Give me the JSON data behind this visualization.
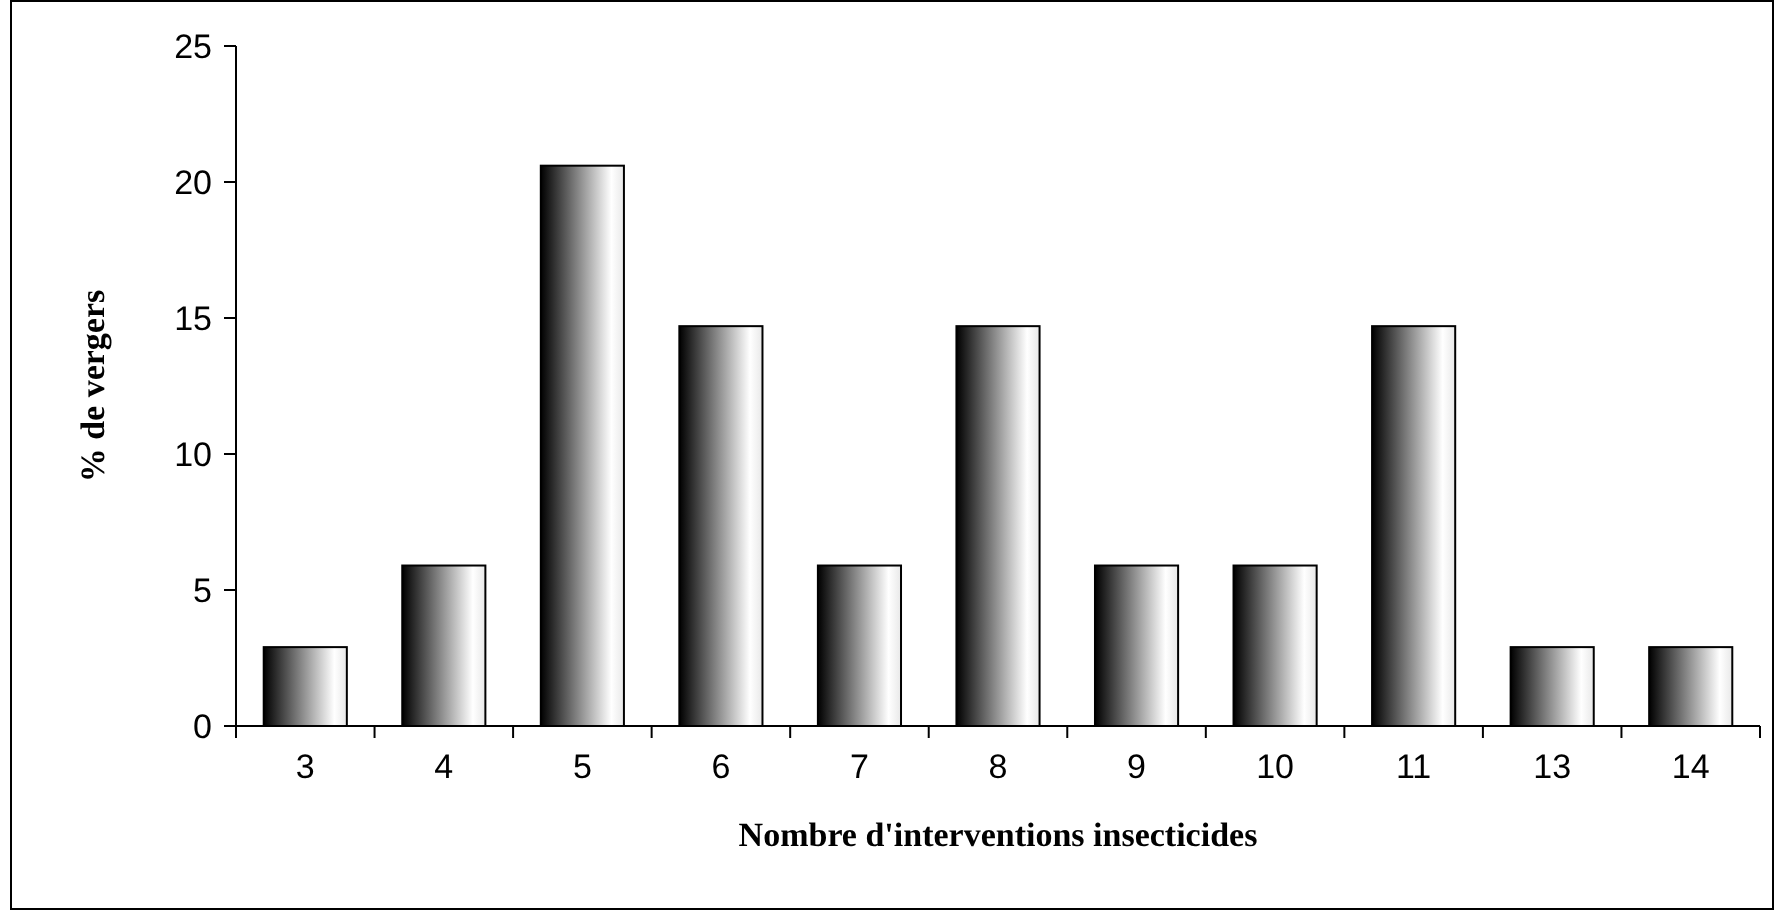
{
  "chart_data": {
    "type": "bar",
    "xlabel": "Nombre d'interventions insecticides",
    "ylabel": "% de vergers",
    "categories": [
      "3",
      "4",
      "5",
      "6",
      "7",
      "8",
      "9",
      "10",
      "11",
      "13",
      "14"
    ],
    "values": [
      2.9,
      5.9,
      20.6,
      14.7,
      5.9,
      14.7,
      5.9,
      5.9,
      14.7,
      2.9,
      2.9
    ],
    "color": "#000000",
    "ylim": [
      0,
      25
    ],
    "yticks": [
      0,
      5,
      10,
      15,
      20,
      25
    ],
    "grid": false
  }
}
